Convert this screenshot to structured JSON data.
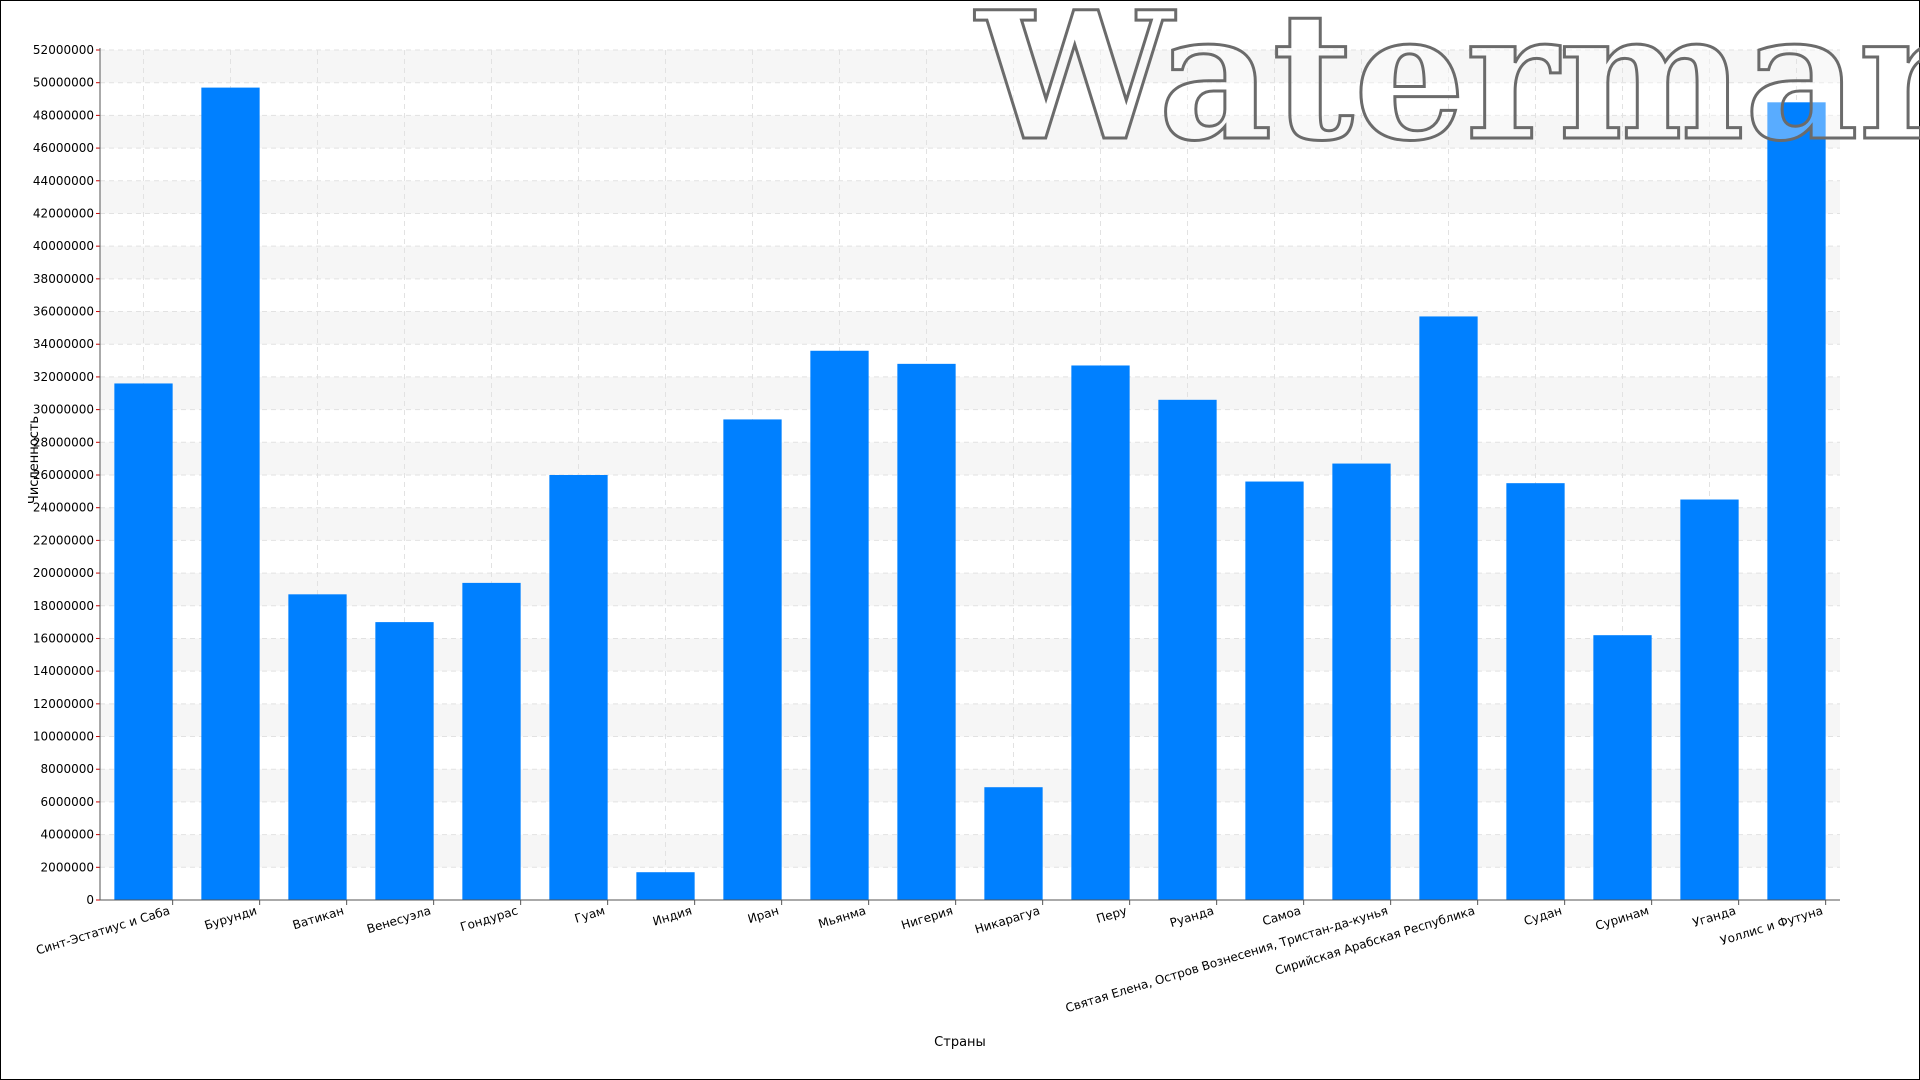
{
  "watermark": "Watermark",
  "chart_data": {
    "type": "bar",
    "title": "",
    "xlabel": "Страны",
    "ylabel": "Численность",
    "ylim": [
      0,
      52000000
    ],
    "ytick_step": 2000000,
    "grid": true,
    "legend": "none",
    "bar_color": "#0080ff",
    "categories": [
      "Синт-Эстатиус и Саба",
      "Бурунди",
      "Ватикан",
      "Венесуэла",
      "Гондурас",
      "Гуам",
      "Индия",
      "Иран",
      "Мьянма",
      "Нигерия",
      "Никарагуа",
      "Перу",
      "Руанда",
      "Самоа",
      "Святая Елена, Остров Вознесения, Тристан-да-кунья",
      "Сирийская Арабская Республика",
      "Судан",
      "Суринам",
      "Уганда",
      "Уоллис и Футуна"
    ],
    "values": [
      31600000,
      49700000,
      18700000,
      17000000,
      19400000,
      26000000,
      1700000,
      29400000,
      33600000,
      32800000,
      6900000,
      32700000,
      30600000,
      25600000,
      26700000,
      35700000,
      25500000,
      16200000,
      24500000,
      48800000
    ]
  }
}
